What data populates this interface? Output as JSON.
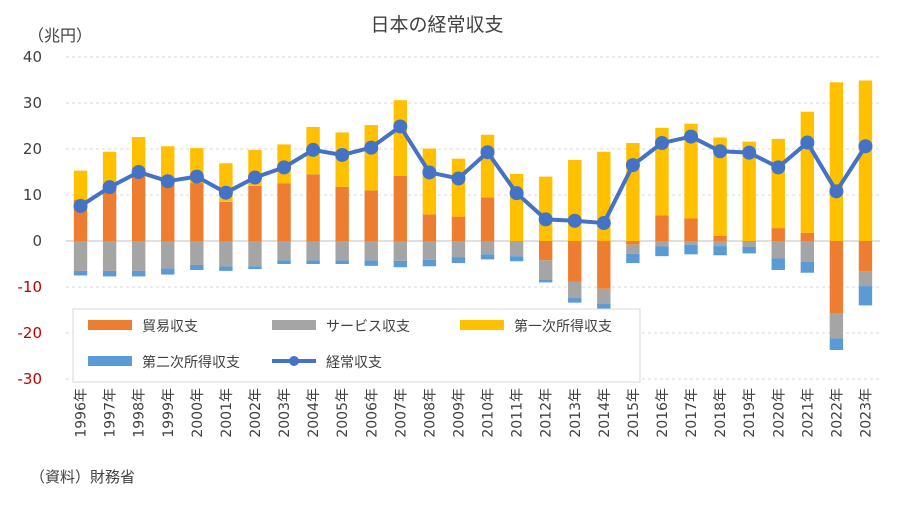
{
  "chart_data": {
    "type": "bar",
    "title": "日本の経常収支",
    "unit_label": "（兆円）",
    "source": "（資料）財務省",
    "categories": [
      "1996年",
      "1997年",
      "1998年",
      "1999年",
      "2000年",
      "2001年",
      "2002年",
      "2003年",
      "2004年",
      "2005年",
      "2006年",
      "2007年",
      "2008年",
      "2009年",
      "2010年",
      "2011年",
      "2012年",
      "2013年",
      "2014年",
      "2015年",
      "2016年",
      "2017年",
      "2018年",
      "2019年",
      "2020年",
      "2021年",
      "2022年",
      "2023年"
    ],
    "ylim": [
      -30,
      40
    ],
    "yticks": [
      -30,
      -20,
      -10,
      0,
      10,
      20,
      30,
      40
    ],
    "grid": true,
    "stacked": true,
    "series": [
      {
        "name": "貿易収支",
        "kind": "bar",
        "color": "#ed7d31",
        "values": [
          9.0,
          12.4,
          16.0,
          14.0,
          12.6,
          8.5,
          12.0,
          12.5,
          14.5,
          11.8,
          11.0,
          14.2,
          5.8,
          5.3,
          9.5,
          0,
          -4.2,
          -8.8,
          -10.4,
          -0.8,
          5.6,
          4.9,
          1.1,
          -0.2,
          2.8,
          1.8,
          -15.8,
          -6.6
        ]
      },
      {
        "name": "サービス収支",
        "kind": "bar",
        "color": "#a5a5a5",
        "values": [
          -6.5,
          -6.5,
          -6.5,
          -6.0,
          -5.2,
          -5.5,
          -5.5,
          -4.2,
          -4.2,
          -4.2,
          -4.2,
          -4.3,
          -4.1,
          -3.5,
          -2.9,
          -3.3,
          -4.2,
          -3.6,
          -3.3,
          -2.0,
          -1.2,
          -0.8,
          -1.1,
          -1.1,
          -3.8,
          -4.5,
          -5.4,
          -3.2
        ]
      },
      {
        "name": "第一次所得収支",
        "kind": "bar",
        "color": "#ffc000",
        "values": [
          6.3,
          7.0,
          6.6,
          6.6,
          7.6,
          8.4,
          7.8,
          8.5,
          10.3,
          11.8,
          14.2,
          16.4,
          14.3,
          12.6,
          13.6,
          14.6,
          14.0,
          17.6,
          19.4,
          21.3,
          19.0,
          20.6,
          21.4,
          21.6,
          19.4,
          26.3,
          34.5,
          34.9
        ]
      },
      {
        "name": "第二次所得収支",
        "kind": "bar",
        "color": "#5b9bd5",
        "values": [
          -1.0,
          -1.2,
          -1.2,
          -1.3,
          -1.1,
          -1.0,
          -0.6,
          -0.8,
          -0.8,
          -0.8,
          -1.2,
          -1.4,
          -1.4,
          -1.3,
          -1.1,
          -1.1,
          -0.6,
          -1.0,
          -1.9,
          -2.0,
          -2.1,
          -2.1,
          -2.0,
          -1.4,
          -2.5,
          -2.4,
          -2.5,
          -4.2
        ]
      },
      {
        "name": "経常収支",
        "kind": "line",
        "color": "#4472c4",
        "values": [
          7.6,
          11.7,
          15.0,
          13.0,
          14.0,
          10.5,
          13.8,
          16.0,
          19.8,
          18.7,
          20.3,
          24.9,
          14.9,
          13.6,
          19.3,
          10.4,
          4.7,
          4.4,
          3.9,
          16.5,
          21.3,
          22.7,
          19.5,
          19.2,
          16.0,
          21.4,
          10.8,
          20.6
        ]
      }
    ]
  }
}
